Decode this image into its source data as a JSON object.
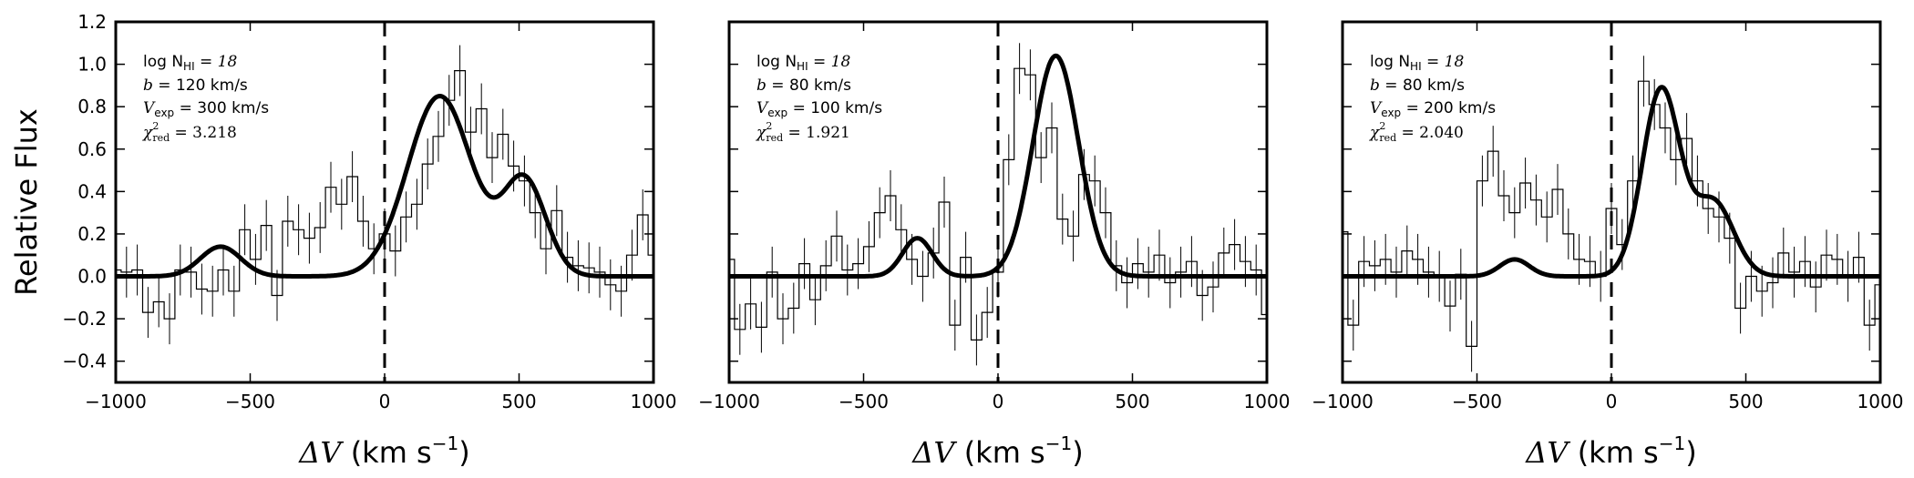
{
  "figure": {
    "ylabel": "Relative Flux",
    "xlabel_prefix": "ΔV",
    "xlabel_units": "(km s",
    "xlabel_sup": "−1",
    "xlabel_close": ")"
  },
  "chart_data": [
    {
      "type": "line",
      "panel": 1,
      "xlim": [
        -1000,
        1000
      ],
      "ylim": [
        -0.5,
        1.2
      ],
      "xticks": [
        -1000,
        -500,
        0,
        500,
        1000
      ],
      "xtick_labels": [
        "−1000",
        "−500",
        "0",
        "500",
        "1000"
      ],
      "yticks": [
        -0.4,
        -0.2,
        0.0,
        0.2,
        0.4,
        0.6,
        0.8,
        1.0,
        1.2
      ],
      "ytick_labels": [
        "−0.4",
        "−0.2",
        "0.0",
        "0.2",
        "0.4",
        "0.6",
        "0.8",
        "1.0",
        "1.2"
      ],
      "show_yticklabels": true,
      "vline_x": 0,
      "annotation": {
        "logN": "log N",
        "logN_sub": "HI",
        "logN_val": " = 18",
        "b": "b",
        "b_val": " = 120 km/s",
        "vexp": "V",
        "vexp_sub": "exp",
        "vexp_val": " = 300 km/s",
        "chi": "χ",
        "chi_sup": "2",
        "chi_sub": "red",
        "chi_val": " = 3.218"
      },
      "model": {
        "baseline": 0.0,
        "components": [
          {
            "amp": 0.14,
            "center": -610,
            "sigma": 75
          },
          {
            "amp": 0.85,
            "center": 205,
            "sigma": 120
          },
          {
            "amp": 0.45,
            "center": 520,
            "sigma": 80
          }
        ]
      },
      "data": {
        "x": [
          -1000,
          -960,
          -920,
          -880,
          -840,
          -800,
          -760,
          -720,
          -680,
          -640,
          -600,
          -560,
          -520,
          -480,
          -440,
          -400,
          -360,
          -320,
          -280,
          -240,
          -200,
          -160,
          -120,
          -80,
          -40,
          0,
          40,
          80,
          120,
          160,
          200,
          240,
          280,
          320,
          360,
          400,
          440,
          480,
          520,
          560,
          600,
          640,
          680,
          720,
          760,
          800,
          840,
          880,
          920,
          960,
          1000
        ],
        "y": [
          0.03,
          0.02,
          0.03,
          -0.17,
          -0.12,
          -0.2,
          0.03,
          0.02,
          -0.06,
          -0.07,
          0.03,
          -0.07,
          0.22,
          0.08,
          0.24,
          -0.09,
          0.26,
          0.22,
          0.18,
          0.23,
          0.42,
          0.34,
          0.47,
          0.26,
          0.13,
          0.2,
          0.12,
          0.28,
          0.34,
          0.53,
          0.66,
          0.83,
          0.97,
          0.68,
          0.79,
          0.56,
          0.67,
          0.52,
          0.45,
          0.3,
          0.13,
          0.31,
          0.09,
          0.05,
          0.04,
          0.02,
          -0.04,
          -0.07,
          0.1,
          0.29,
          0.1
        ],
        "err": [
          0.12,
          0.12,
          0.12,
          0.12,
          0.12,
          0.12,
          0.12,
          0.12,
          0.12,
          0.12,
          0.12,
          0.12,
          0.12,
          0.12,
          0.12,
          0.12,
          0.12,
          0.12,
          0.12,
          0.12,
          0.12,
          0.12,
          0.12,
          0.12,
          0.12,
          0.12,
          0.12,
          0.12,
          0.12,
          0.12,
          0.12,
          0.12,
          0.12,
          0.12,
          0.12,
          0.12,
          0.12,
          0.12,
          0.12,
          0.12,
          0.12,
          0.12,
          0.12,
          0.12,
          0.12,
          0.12,
          0.12,
          0.12,
          0.12,
          0.12,
          0.12
        ]
      }
    },
    {
      "type": "line",
      "panel": 2,
      "xlim": [
        -1000,
        1000
      ],
      "ylim": [
        -0.5,
        1.2
      ],
      "xticks": [
        -1000,
        -500,
        0,
        500,
        1000
      ],
      "xtick_labels": [
        "−1000",
        "−500",
        "0",
        "500",
        "1000"
      ],
      "yticks": [
        -0.4,
        -0.2,
        0.0,
        0.2,
        0.4,
        0.6,
        0.8,
        1.0,
        1.2
      ],
      "ytick_labels": [],
      "show_yticklabels": false,
      "vline_x": 0,
      "annotation": {
        "logN": "log N",
        "logN_sub": "HI",
        "logN_val": " = 18",
        "b": "b",
        "b_val": " = 80 km/s",
        "vexp": "V",
        "vexp_sub": "exp",
        "vexp_val": " = 100 km/s",
        "chi": "χ",
        "chi_sup": "2",
        "chi_sub": "red",
        "chi_val": " = 1.921"
      },
      "model": {
        "baseline": 0.0,
        "components": [
          {
            "amp": 0.18,
            "center": -300,
            "sigma": 55
          },
          {
            "amp": 1.04,
            "center": 215,
            "sigma": 85
          }
        ]
      },
      "data": {
        "x": [
          -1000,
          -960,
          -920,
          -880,
          -840,
          -800,
          -760,
          -720,
          -680,
          -640,
          -600,
          -560,
          -520,
          -480,
          -440,
          -400,
          -360,
          -320,
          -280,
          -240,
          -200,
          -160,
          -120,
          -80,
          -40,
          0,
          40,
          80,
          120,
          160,
          200,
          240,
          280,
          320,
          360,
          400,
          440,
          480,
          520,
          560,
          600,
          640,
          680,
          720,
          760,
          800,
          840,
          880,
          920,
          960,
          1000
        ],
        "y": [
          0.08,
          -0.25,
          -0.13,
          -0.24,
          0.02,
          -0.2,
          -0.15,
          0.06,
          -0.11,
          0.05,
          0.19,
          0.03,
          0.06,
          0.14,
          0.3,
          0.38,
          0.22,
          0.08,
          0.0,
          0.11,
          0.35,
          -0.23,
          0.09,
          -0.3,
          -0.17,
          0.02,
          0.55,
          0.98,
          0.95,
          0.56,
          0.7,
          0.27,
          0.19,
          0.48,
          0.45,
          0.3,
          0.05,
          -0.03,
          0.06,
          0.02,
          0.1,
          -0.03,
          0.02,
          0.07,
          -0.09,
          -0.05,
          0.11,
          0.15,
          0.07,
          0.03,
          -0.18
        ],
        "err": [
          0.12,
          0.12,
          0.12,
          0.12,
          0.12,
          0.12,
          0.12,
          0.12,
          0.12,
          0.12,
          0.12,
          0.12,
          0.12,
          0.12,
          0.12,
          0.12,
          0.12,
          0.12,
          0.12,
          0.12,
          0.12,
          0.12,
          0.12,
          0.12,
          0.12,
          0.12,
          0.12,
          0.12,
          0.12,
          0.12,
          0.12,
          0.12,
          0.12,
          0.12,
          0.12,
          0.12,
          0.12,
          0.12,
          0.12,
          0.12,
          0.12,
          0.12,
          0.12,
          0.12,
          0.12,
          0.12,
          0.12,
          0.12,
          0.12,
          0.12,
          0.12
        ]
      }
    },
    {
      "type": "line",
      "panel": 3,
      "xlim": [
        -1000,
        1000
      ],
      "ylim": [
        -0.5,
        1.2
      ],
      "xticks": [
        -1000,
        -500,
        0,
        500,
        1000
      ],
      "xtick_labels": [
        "−1000",
        "−500",
        "0",
        "500",
        "1000"
      ],
      "yticks": [
        -0.4,
        -0.2,
        0.0,
        0.2,
        0.4,
        0.6,
        0.8,
        1.0,
        1.2
      ],
      "ytick_labels": [],
      "show_yticklabels": false,
      "vline_x": 0,
      "annotation": {
        "logN": "log N",
        "logN_sub": "HI",
        "logN_val": " = 18",
        "b": "b",
        "b_val": " = 80 km/s",
        "vexp": "V",
        "vexp_sub": "exp",
        "vexp_val": " = 200 km/s",
        "chi": "χ",
        "chi_sup": "2",
        "chi_sub": "red",
        "chi_val": " = 2.040"
      },
      "model": {
        "baseline": 0.0,
        "components": [
          {
            "amp": 0.08,
            "center": -360,
            "sigma": 55
          },
          {
            "amp": 0.88,
            "center": 185,
            "sigma": 70
          },
          {
            "amp": 0.35,
            "center": 380,
            "sigma": 75
          }
        ]
      },
      "data": {
        "x": [
          -1000,
          -960,
          -920,
          -880,
          -840,
          -800,
          -760,
          -720,
          -680,
          -640,
          -600,
          -560,
          -520,
          -480,
          -440,
          -400,
          -360,
          -320,
          -280,
          -240,
          -200,
          -160,
          -120,
          -80,
          -40,
          0,
          40,
          80,
          120,
          160,
          200,
          240,
          280,
          320,
          360,
          400,
          440,
          480,
          520,
          560,
          600,
          640,
          680,
          720,
          760,
          800,
          840,
          880,
          920,
          960,
          1000
        ],
        "y": [
          0.21,
          -0.23,
          0.07,
          0.05,
          0.08,
          0.02,
          0.12,
          0.08,
          0.02,
          0.0,
          -0.14,
          0.01,
          -0.33,
          0.45,
          0.59,
          0.38,
          0.3,
          0.44,
          0.36,
          0.28,
          0.41,
          0.2,
          0.08,
          0.07,
          0.0,
          0.32,
          0.15,
          0.45,
          0.92,
          0.81,
          0.7,
          0.55,
          0.65,
          0.45,
          0.32,
          0.28,
          0.18,
          -0.15,
          0.0,
          -0.07,
          -0.03,
          0.11,
          0.02,
          0.07,
          -0.05,
          0.1,
          0.08,
          0.0,
          0.09,
          -0.23,
          -0.04
        ],
        "err": [
          0.12,
          0.12,
          0.12,
          0.12,
          0.12,
          0.12,
          0.12,
          0.12,
          0.12,
          0.12,
          0.12,
          0.12,
          0.12,
          0.12,
          0.12,
          0.12,
          0.12,
          0.12,
          0.12,
          0.12,
          0.12,
          0.12,
          0.12,
          0.12,
          0.12,
          0.12,
          0.12,
          0.12,
          0.12,
          0.12,
          0.12,
          0.12,
          0.12,
          0.12,
          0.12,
          0.12,
          0.12,
          0.12,
          0.12,
          0.12,
          0.12,
          0.12,
          0.12,
          0.12,
          0.12,
          0.12,
          0.12,
          0.12,
          0.12,
          0.12,
          0.12
        ]
      }
    }
  ]
}
